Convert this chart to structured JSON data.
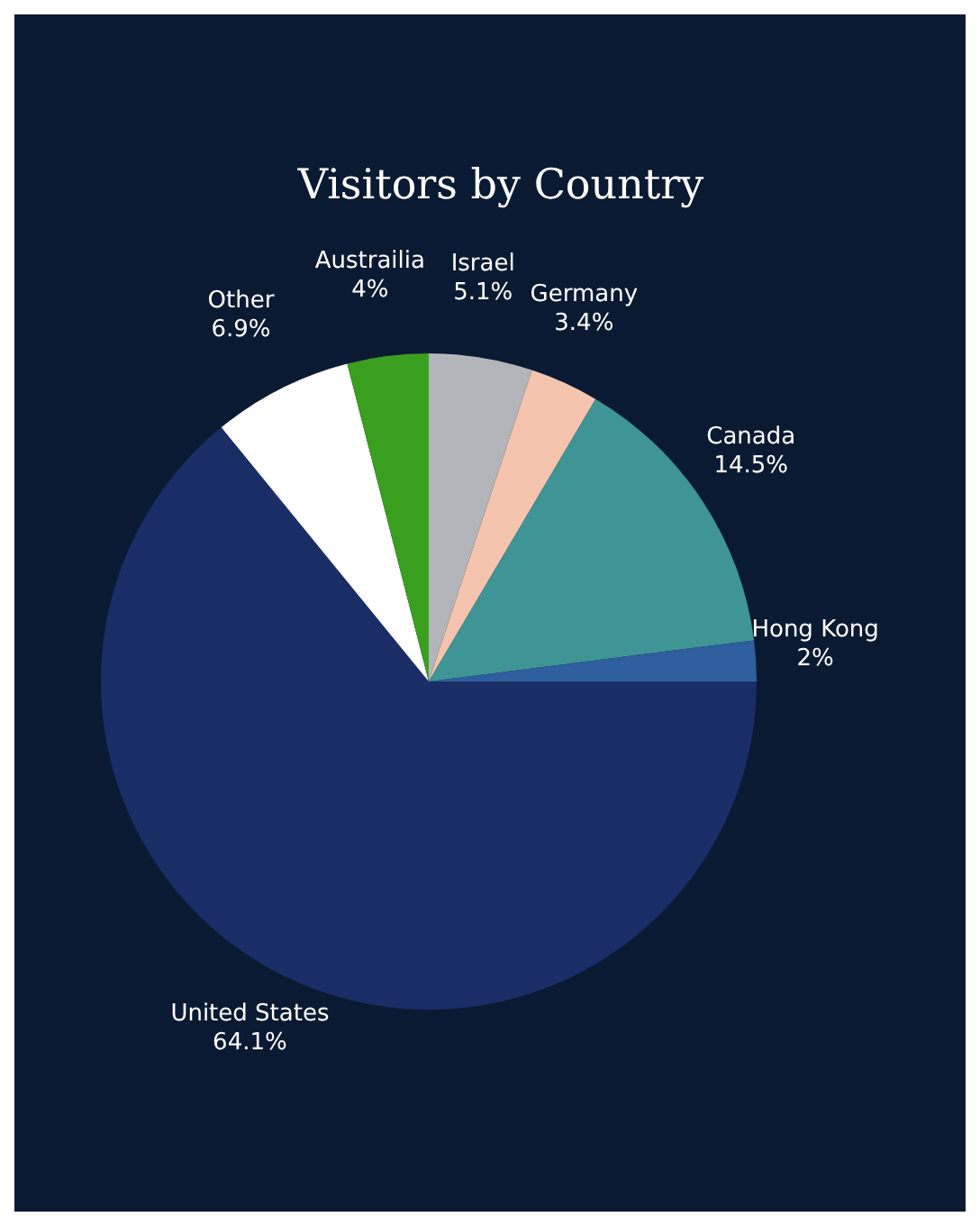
{
  "chart_data": {
    "type": "pie",
    "title": "Visitors by Country",
    "categories": [
      "Israel",
      "Germany",
      "Canada",
      "Hong Kong",
      "United States",
      "Other",
      "Austrailia"
    ],
    "values": [
      5.1,
      3.4,
      14.5,
      2,
      64.1,
      6.9,
      4
    ],
    "colors": [
      "#b3b5ba",
      "#f4c4ae",
      "#3f9595",
      "#2e5e9e",
      "#1a2d66",
      "#ffffff",
      "#3a9e1f"
    ],
    "value_labels": [
      "5.1%",
      "3.4%",
      "14.5%",
      "2%",
      "64.1%",
      "6.9%",
      "4%"
    ],
    "legend": false
  }
}
